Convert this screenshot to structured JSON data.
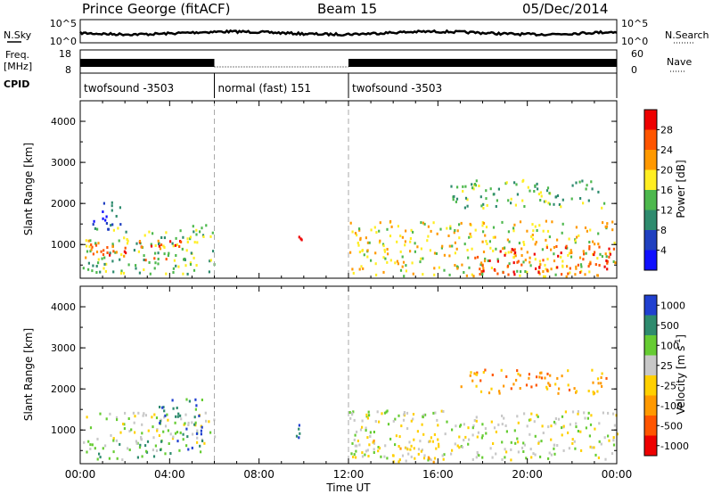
{
  "header": {
    "station": "Prince George (fitACF)",
    "beam": "Beam 15",
    "date": "05/Dec/2014"
  },
  "strips": {
    "nsky_label": "N.Sky",
    "nsky_ticks": [
      "10^5",
      "10^0"
    ],
    "nsearch_label": "N.Search",
    "nsearch_ticks": [
      "10^5",
      "10^0"
    ],
    "freq_label_line1": "Freq.",
    "freq_label_line2": "[MHz]",
    "freq_ticks": [
      "18",
      "8"
    ],
    "nave_label": "Nave",
    "nave_ticks": [
      "60",
      "0"
    ],
    "cpid_label": "CPID",
    "cpid_segments": [
      {
        "name": "twofsound -3503",
        "start_h": 0,
        "end_h": 6
      },
      {
        "name": "normal (fast) 151",
        "start_h": 6,
        "end_h": 12
      },
      {
        "name": "twofsound -3503",
        "start_h": 12,
        "end_h": 24
      }
    ]
  },
  "chart_data": [
    {
      "type": "heatmap",
      "name": "power",
      "ylabel": "Slant Range [km]",
      "y_ticks": [
        "1000",
        "2000",
        "3000",
        "4000"
      ],
      "y_tick_values": [
        1000,
        2000,
        3000,
        4000
      ],
      "ylim": [
        180,
        4500
      ],
      "xlim": [
        0,
        24
      ],
      "colorbar_label": "Power [dB]",
      "colorbar_ticks": [
        "4",
        "8",
        "12",
        "16",
        "20",
        "24",
        "28"
      ],
      "colorbar_values": [
        4,
        8,
        12,
        16,
        20,
        24,
        28
      ],
      "colors": [
        "#1010ff",
        "#2040c0",
        "#2e8b6e",
        "#4db84d",
        "#ffee22",
        "#ff9900",
        "#ff5500",
        "#ee0000"
      ],
      "regions": [
        {
          "t0": 0.1,
          "t1": 6.0,
          "r0": 300,
          "r1": 1500,
          "level": 3
        },
        {
          "t0": 0.2,
          "t1": 4.6,
          "r0": 650,
          "r1": 1150,
          "level": 6
        },
        {
          "t0": 0.5,
          "t1": 1.8,
          "r0": 1400,
          "r1": 2200,
          "level": 1
        },
        {
          "t0": 9.6,
          "t1": 10.0,
          "r0": 850,
          "r1": 1250,
          "level": 7
        },
        {
          "t0": 12.0,
          "t1": 24.0,
          "r0": 250,
          "r1": 1600,
          "level": 4
        },
        {
          "t0": 17.5,
          "t1": 24.0,
          "r0": 300,
          "r1": 1000,
          "level": 6
        },
        {
          "t0": 16.5,
          "t1": 23.5,
          "r0": 1900,
          "r1": 2600,
          "level": 3
        }
      ]
    },
    {
      "type": "heatmap",
      "name": "velocity",
      "ylabel": "Slant Range [km]",
      "y_ticks": [
        "1000",
        "2000",
        "3000",
        "4000"
      ],
      "y_tick_values": [
        1000,
        2000,
        3000,
        4000
      ],
      "ylim": [
        180,
        4500
      ],
      "xlim": [
        0,
        24
      ],
      "colorbar_label": "Velocity [m s",
      "colorbar_label_sup": "-1",
      "colorbar_label_end": "]",
      "colorbar_ticks": [
        "1000",
        "500",
        "100",
        "25",
        "-25",
        "-100",
        "-500",
        "-1000"
      ],
      "colors": [
        "#2040d0",
        "#2e8b6e",
        "#66cc33",
        "#c8c8c8",
        "#ffd000",
        "#ff9900",
        "#ff5500",
        "#ee0000"
      ],
      "regions": [
        {
          "t0": 0.1,
          "t1": 6.0,
          "r0": 700,
          "r1": 1450,
          "level": 3
        },
        {
          "t0": 0.2,
          "t1": 4.0,
          "r0": 300,
          "r1": 800,
          "level": 2
        },
        {
          "t0": 3.5,
          "t1": 5.5,
          "r0": 500,
          "r1": 1800,
          "level": 1
        },
        {
          "t0": 9.5,
          "t1": 10.0,
          "r0": 800,
          "r1": 1300,
          "level": 0
        },
        {
          "t0": 12.0,
          "t1": 24.0,
          "r0": 300,
          "r1": 1500,
          "level": 3
        },
        {
          "t0": 17.0,
          "t1": 23.5,
          "r0": 1900,
          "r1": 2500,
          "level": 5
        },
        {
          "t0": 12.5,
          "t1": 16.0,
          "r0": 250,
          "r1": 800,
          "level": 4
        }
      ]
    }
  ],
  "x_axis": {
    "label": "Time UT",
    "ticks": [
      "00:00",
      "04:00",
      "08:00",
      "12:00",
      "16:00",
      "20:00",
      "00:00"
    ],
    "tick_hours": [
      0,
      4,
      8,
      12,
      16,
      20,
      24
    ]
  }
}
